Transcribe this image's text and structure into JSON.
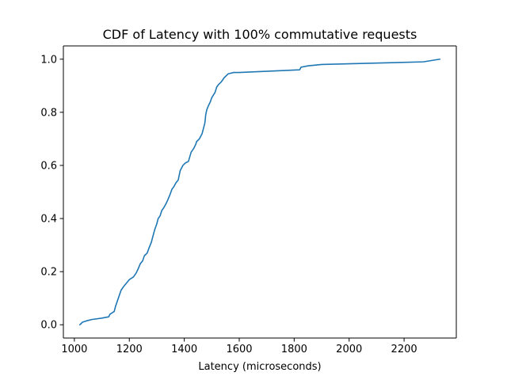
{
  "chart_data": {
    "type": "line",
    "title": "CDF of Latency with 100% commutative requests",
    "xlabel": "Latency (microseconds)",
    "ylabel": "",
    "xlim": [
      960,
      2390
    ],
    "ylim": [
      -0.05,
      1.05
    ],
    "xticks": [
      1000,
      1200,
      1400,
      1600,
      1800,
      2000,
      2200
    ],
    "yticks": [
      0.0,
      0.2,
      0.4,
      0.6,
      0.8,
      1.0
    ],
    "xtick_labels": [
      "1000",
      "1200",
      "1400",
      "1600",
      "1800",
      "2000",
      "2200"
    ],
    "ytick_labels": [
      "0.0",
      "0.2",
      "0.4",
      "0.6",
      "0.8",
      "1.0"
    ],
    "grid": false,
    "color": "#1f77b4",
    "series": [
      {
        "x": [
          1020,
          1030,
          1045,
          1065,
          1100,
          1125,
          1130,
          1145,
          1150,
          1160,
          1170,
          1180,
          1200,
          1215,
          1225,
          1232,
          1240,
          1248,
          1255,
          1265,
          1272,
          1280,
          1285,
          1293,
          1300,
          1305,
          1312,
          1318,
          1325,
          1333,
          1340,
          1348,
          1355,
          1362,
          1370,
          1378,
          1385,
          1395,
          1405,
          1415,
          1425,
          1435,
          1442,
          1445,
          1455,
          1465,
          1475,
          1478,
          1482,
          1488,
          1495,
          1500,
          1512,
          1518,
          1525,
          1535,
          1545,
          1560,
          1580,
          1600,
          1820,
          1825,
          1850,
          1900,
          2270,
          2330
        ],
        "y": [
          0.0,
          0.01,
          0.015,
          0.02,
          0.025,
          0.03,
          0.04,
          0.05,
          0.07,
          0.1,
          0.13,
          0.145,
          0.17,
          0.18,
          0.195,
          0.21,
          0.23,
          0.24,
          0.26,
          0.27,
          0.29,
          0.31,
          0.33,
          0.36,
          0.38,
          0.4,
          0.41,
          0.43,
          0.44,
          0.455,
          0.47,
          0.49,
          0.51,
          0.52,
          0.535,
          0.545,
          0.58,
          0.6,
          0.61,
          0.615,
          0.65,
          0.665,
          0.68,
          0.69,
          0.7,
          0.72,
          0.76,
          0.79,
          0.81,
          0.825,
          0.84,
          0.855,
          0.875,
          0.895,
          0.905,
          0.915,
          0.93,
          0.945,
          0.95,
          0.95,
          0.96,
          0.97,
          0.975,
          0.98,
          0.99,
          1.0
        ]
      }
    ]
  }
}
